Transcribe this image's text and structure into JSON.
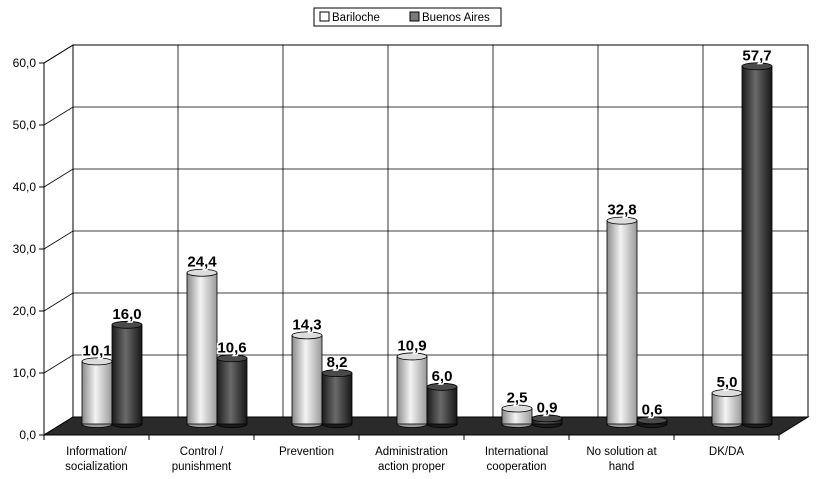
{
  "chart_data": {
    "type": "bar",
    "categories": [
      [
        "Information/",
        "socialization"
      ],
      [
        "Control /",
        "punishment"
      ],
      [
        "Prevention"
      ],
      [
        "Administration",
        "action proper"
      ],
      [
        "International",
        "cooperation"
      ],
      [
        "No solution at",
        "hand"
      ],
      [
        "DK/DA"
      ]
    ],
    "series": [
      {
        "name": "Bariloche",
        "values": [
          10.1,
          24.4,
          14.3,
          10.9,
          2.5,
          32.8,
          5.0
        ],
        "labels": [
          "10,1",
          "24,4",
          "14,3",
          "10,9",
          "2,5",
          "32,8",
          "5,0"
        ],
        "color": "#c8c8c8"
      },
      {
        "name": "Buenos Aires",
        "values": [
          16.0,
          10.6,
          8.2,
          6.0,
          0.9,
          0.6,
          57.7
        ],
        "labels": [
          "16,0",
          "10,6",
          "8,2",
          "6,0",
          "0,9",
          "0,6",
          "57,7"
        ],
        "color": "#3c3c3c"
      }
    ],
    "yticks": [
      "0,0",
      "10,0",
      "20,0",
      "30,0",
      "40,0",
      "50,0",
      "60,0"
    ],
    "ylim": [
      0,
      60
    ],
    "grid": true,
    "legend_position": "top-center",
    "title": "",
    "xlabel": "",
    "ylabel": ""
  }
}
